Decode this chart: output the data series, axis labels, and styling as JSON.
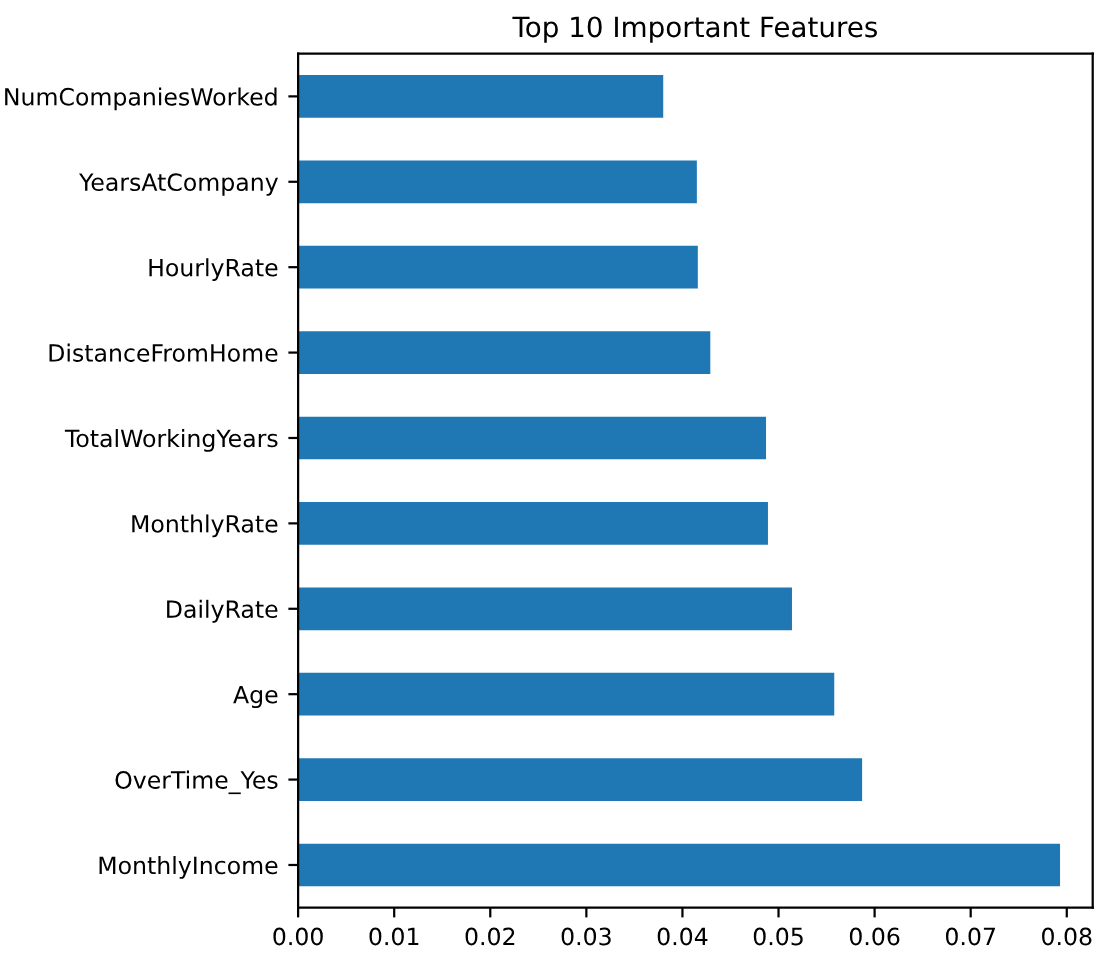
{
  "chart_data": {
    "type": "bar",
    "orientation": "horizontal",
    "title": "Top 10 Important Features",
    "categories": [
      "NumCompaniesWorked",
      "YearsAtCompany",
      "HourlyRate",
      "DistanceFromHome",
      "TotalWorkingYears",
      "MonthlyRate",
      "DailyRate",
      "Age",
      "OverTime_Yes",
      "MonthlyIncome"
    ],
    "values": [
      0.038,
      0.0415,
      0.0416,
      0.0429,
      0.0487,
      0.0489,
      0.0514,
      0.0558,
      0.0587,
      0.0793
    ],
    "color": "#1f77b4",
    "xlim": [
      0,
      0.0827
    ],
    "xticks": [
      {
        "value": 0,
        "label": "0.00"
      },
      0.01,
      0.02,
      0.03,
      0.04,
      0.05,
      0.06,
      0.07,
      0.08
    ],
    "grid": false
  }
}
